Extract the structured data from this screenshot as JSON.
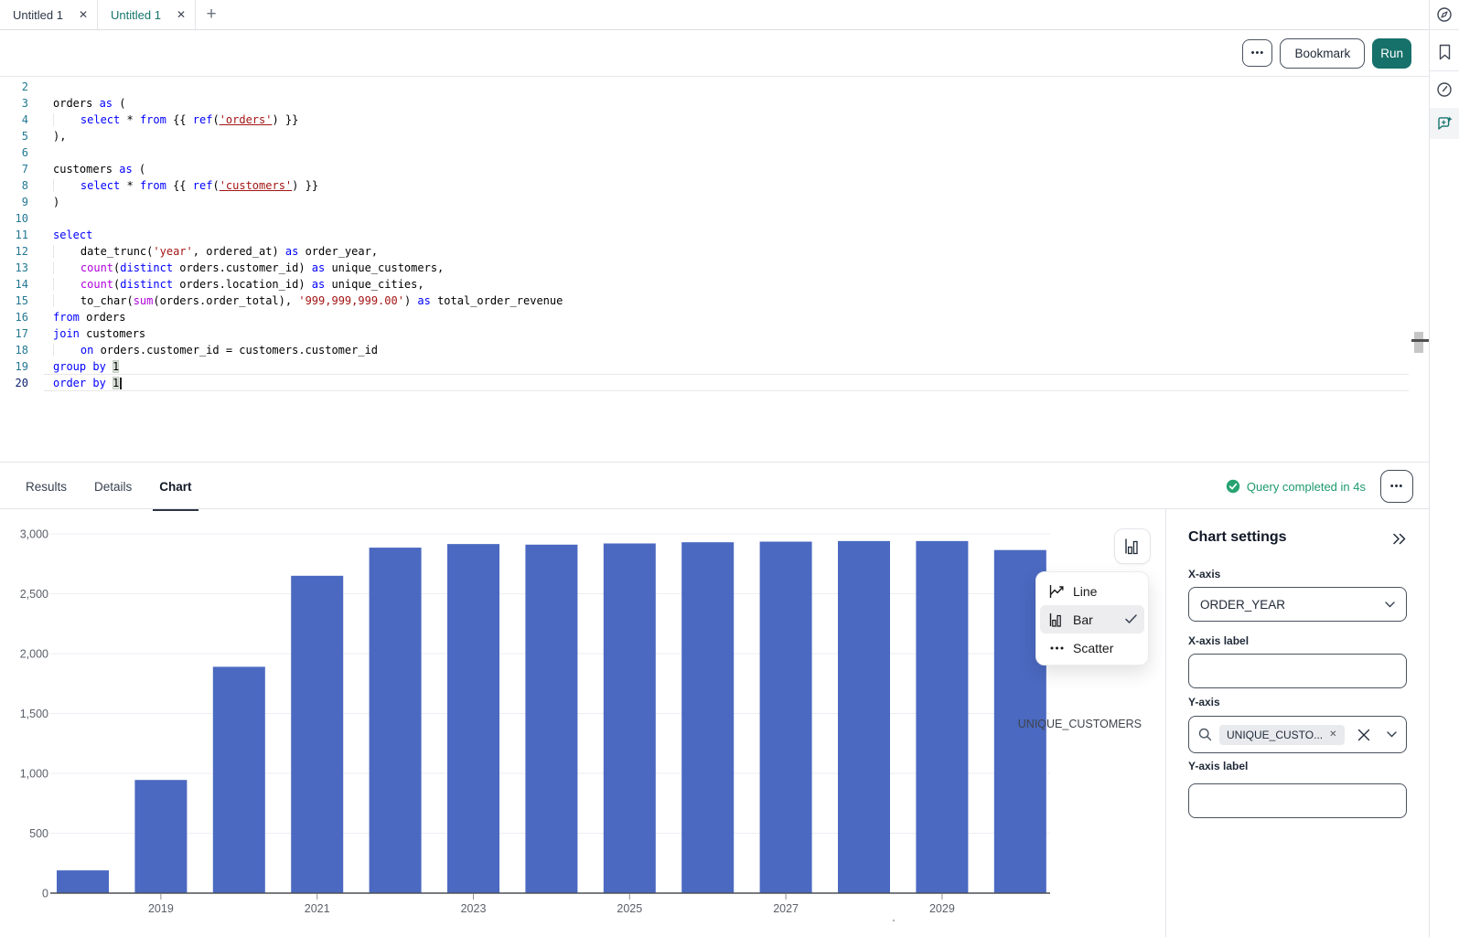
{
  "tabbar": {
    "tabs": [
      {
        "label": "Untitled 1",
        "active": false
      },
      {
        "label": "Untitled 1",
        "active": true
      }
    ],
    "close_icon": "✕",
    "new_tab_icon": "+"
  },
  "toolbar": {
    "more_label": "•••",
    "bookmark_label": "Bookmark",
    "run_label": "Run"
  },
  "colors": {
    "accent_teal": "#16716a",
    "success_green": "#27a371",
    "bar_blue": "#4b69c1"
  },
  "editor": {
    "lines": [
      {
        "n": "2",
        "tokens": []
      },
      {
        "n": "3",
        "tokens": [
          [
            "d",
            "orders "
          ],
          [
            "k",
            "as"
          ],
          [
            "d",
            " ("
          ]
        ]
      },
      {
        "n": "4",
        "tokens": [
          [
            "i",
            "    "
          ],
          [
            "k",
            "select"
          ],
          [
            "d",
            " * "
          ],
          [
            "k",
            "from"
          ],
          [
            "d",
            " {{ "
          ],
          [
            "k",
            "ref"
          ],
          [
            "d",
            "("
          ],
          [
            "l",
            "'orders'"
          ],
          [
            "d",
            ") }}"
          ]
        ]
      },
      {
        "n": "5",
        "tokens": [
          [
            "d",
            "),"
          ]
        ]
      },
      {
        "n": "6",
        "tokens": []
      },
      {
        "n": "7",
        "tokens": [
          [
            "d",
            "customers "
          ],
          [
            "k",
            "as"
          ],
          [
            "d",
            " ("
          ]
        ]
      },
      {
        "n": "8",
        "tokens": [
          [
            "i",
            "    "
          ],
          [
            "k",
            "select"
          ],
          [
            "d",
            " * "
          ],
          [
            "k",
            "from"
          ],
          [
            "d",
            " {{ "
          ],
          [
            "k",
            "ref"
          ],
          [
            "d",
            "("
          ],
          [
            "l",
            "'customers'"
          ],
          [
            "d",
            ") }}"
          ]
        ]
      },
      {
        "n": "9",
        "tokens": [
          [
            "d",
            ")"
          ]
        ]
      },
      {
        "n": "10",
        "tokens": []
      },
      {
        "n": "11",
        "tokens": [
          [
            "k",
            "select"
          ]
        ]
      },
      {
        "n": "12",
        "tokens": [
          [
            "i",
            "    "
          ],
          [
            "d",
            "date_trunc("
          ],
          [
            "s",
            "'year'"
          ],
          [
            "d",
            ", ordered_at) "
          ],
          [
            "k",
            "as"
          ],
          [
            "d",
            " order_year,"
          ]
        ]
      },
      {
        "n": "13",
        "tokens": [
          [
            "i",
            "    "
          ],
          [
            "f",
            "count"
          ],
          [
            "d",
            "("
          ],
          [
            "k",
            "distinct"
          ],
          [
            "d",
            " orders.customer_id) "
          ],
          [
            "k",
            "as"
          ],
          [
            "d",
            " unique_customers,"
          ]
        ]
      },
      {
        "n": "14",
        "tokens": [
          [
            "i",
            "    "
          ],
          [
            "f",
            "count"
          ],
          [
            "d",
            "("
          ],
          [
            "k",
            "distinct"
          ],
          [
            "d",
            " orders.location_id) "
          ],
          [
            "k",
            "as"
          ],
          [
            "d",
            " unique_cities,"
          ]
        ]
      },
      {
        "n": "15",
        "tokens": [
          [
            "i",
            "    "
          ],
          [
            "d",
            "to_char("
          ],
          [
            "f",
            "sum"
          ],
          [
            "d",
            "(orders.order_total), "
          ],
          [
            "s",
            "'999,999,999.00'"
          ],
          [
            "d",
            ") "
          ],
          [
            "k",
            "as"
          ],
          [
            "d",
            " total_order_revenue"
          ]
        ]
      },
      {
        "n": "16",
        "tokens": [
          [
            "k",
            "from"
          ],
          [
            "d",
            " orders"
          ]
        ]
      },
      {
        "n": "17",
        "tokens": [
          [
            "k",
            "join"
          ],
          [
            "d",
            " customers"
          ]
        ]
      },
      {
        "n": "18",
        "tokens": [
          [
            "i",
            "    "
          ],
          [
            "k",
            "on"
          ],
          [
            "d",
            " orders.customer_id = customers.customer_id"
          ]
        ]
      },
      {
        "n": "19",
        "tokens": [
          [
            "k",
            "group by"
          ],
          [
            "d",
            " "
          ],
          [
            "h",
            "1"
          ]
        ]
      },
      {
        "n": "20",
        "current": true,
        "caret": true,
        "tokens": [
          [
            "k",
            "order by"
          ],
          [
            "d",
            " "
          ],
          [
            "h",
            "1"
          ]
        ]
      }
    ]
  },
  "results": {
    "tabs": [
      {
        "label": "Results",
        "active": false
      },
      {
        "label": "Details",
        "active": false
      },
      {
        "label": "Chart",
        "active": true
      }
    ],
    "status": "Query completed in 4s",
    "more_label": "•••"
  },
  "chart_data": {
    "type": "bar",
    "categories": [
      "2018",
      "2019",
      "2020",
      "2021",
      "2022",
      "2023",
      "2024",
      "2025",
      "2026",
      "2027",
      "2028",
      "2029",
      "2030"
    ],
    "values": [
      190,
      945,
      1890,
      2650,
      2885,
      2915,
      2910,
      2920,
      2930,
      2935,
      2940,
      2940,
      2865
    ],
    "series_name": "UNIQUE_CUSTOMERS",
    "x_tick_labels": [
      "2019",
      "2021",
      "2023",
      "2025",
      "2027",
      "2029"
    ],
    "y_ticks": [
      0,
      500,
      1000,
      1500,
      2000,
      2500,
      3000
    ],
    "ylim": [
      0,
      3000
    ],
    "xlabel": "",
    "ylabel": "",
    "bar_color": "#4b69c1",
    "grid": true,
    "legend_position": "right"
  },
  "chart_menu": {
    "items": [
      {
        "label": "Line",
        "icon": "line-chart-icon",
        "selected": false
      },
      {
        "label": "Bar",
        "icon": "bar-chart-icon",
        "selected": true
      },
      {
        "label": "Scatter",
        "icon": "scatter-chart-icon",
        "selected": false
      }
    ]
  },
  "chart_settings": {
    "title": "Chart settings",
    "x_axis": {
      "label": "X-axis",
      "value": "ORDER_YEAR"
    },
    "x_axis_label": {
      "label": "X-axis label",
      "value": ""
    },
    "y_axis": {
      "label": "Y-axis",
      "tag": "UNIQUE_CUSTO...",
      "tag_remove": "✕"
    },
    "y_axis_label": {
      "label": "Y-axis label",
      "value": ""
    }
  }
}
